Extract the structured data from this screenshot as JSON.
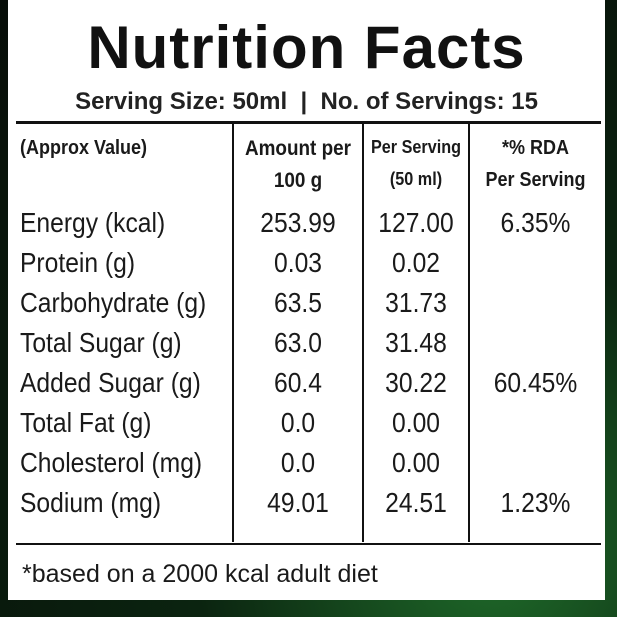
{
  "header": {
    "title": "Nutrition Facts",
    "serving": "Serving Size: 50ml  |  No. of Servings: 15"
  },
  "table": {
    "columns": [
      {
        "lines": [
          "(Approx Value)"
        ]
      },
      {
        "lines": [
          "Amount per",
          "100 g"
        ]
      },
      {
        "lines": [
          "Per Serving",
          "(50 ml)"
        ]
      },
      {
        "lines": [
          "*% RDA",
          "Per Serving"
        ]
      }
    ],
    "rows": [
      {
        "nutrient": "Energy (kcal)",
        "per_100g": "253.99",
        "per_serving": "127.00",
        "rda": "6.35%"
      },
      {
        "nutrient": "Protein (g)",
        "per_100g": "0.03",
        "per_serving": "0.02"
      },
      {
        "nutrient": "Carbohydrate (g)",
        "per_100g": "63.5",
        "per_serving": "31.73"
      },
      {
        "nutrient": "Total Sugar (g)",
        "per_100g": "63.0",
        "per_serving": "31.48"
      },
      {
        "nutrient": "Added Sugar (g)",
        "per_100g": "60.4",
        "per_serving": "30.22",
        "rda": "60.45%"
      },
      {
        "nutrient": "Total Fat (g)",
        "per_100g": "0.0",
        "per_serving": "0.00"
      },
      {
        "nutrient": "Cholesterol (mg)",
        "per_100g": "0.0",
        "per_serving": "0.00"
      },
      {
        "nutrient": "Sodium (mg)",
        "per_100g": "49.01",
        "per_serving": "24.51",
        "rda": "1.23%"
      }
    ]
  },
  "footnote": "*based on a 2000 kcal adult diet"
}
